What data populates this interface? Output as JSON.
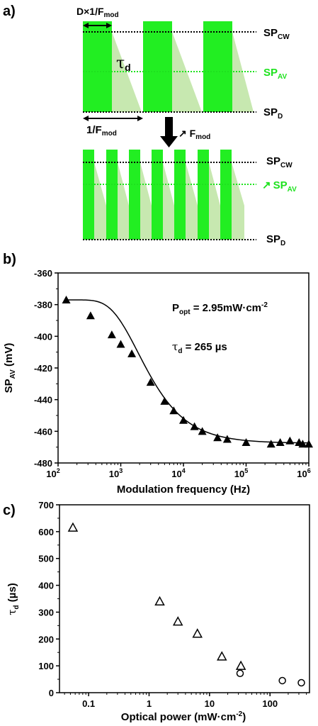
{
  "panels": {
    "a": "a)",
    "b": "b)",
    "c": "c)"
  },
  "diagram": {
    "duty_label": "D×1/F",
    "duty_sub": "mod",
    "tau_label": "τ",
    "tau_sub": "d",
    "period_label": "1/F",
    "period_sub": "mod",
    "arrow_label": "↗ F",
    "arrow_sub": "mod",
    "sp_cw": "SP",
    "sp_cw_sub": "CW",
    "sp_av": "SP",
    "sp_av_sub": "AV",
    "sp_d": "SP",
    "sp_d_sub": "D",
    "sp_av_arrow": "↗",
    "colors": {
      "pulse": "#22ee22",
      "decay": "#c7e8b0",
      "sp_av": "#1ee21e"
    }
  },
  "chart_data": [
    {
      "type": "line",
      "panel": "b)",
      "xlabel": "Modulation frequency (Hz)",
      "ylabel": "SP",
      "ylabel_sub": "AV",
      "ylabel_unit": " (mV)",
      "xscale": "log",
      "xlim": [
        100,
        1000000
      ],
      "ylim": [
        -480,
        -360
      ],
      "xticks": [
        {
          "value": 100,
          "base": "10",
          "exp": "2"
        },
        {
          "value": 1000,
          "base": "10",
          "exp": "3"
        },
        {
          "value": 10000,
          "base": "10",
          "exp": "4"
        },
        {
          "value": 100000,
          "base": "10",
          "exp": "5"
        },
        {
          "value": 1000000,
          "base": "10",
          "exp": "6"
        }
      ],
      "yticks": [
        -360,
        -380,
        -400,
        -420,
        -440,
        -460,
        -480
      ],
      "annotation_popt": "P",
      "annotation_popt_sub": "opt",
      "annotation_popt_value": " = 2.95mW·cm",
      "annotation_popt_exp": "-2",
      "annotation_tau": "τ",
      "annotation_tau_sub": "d",
      "annotation_tau_value": " = 265 µs",
      "points": [
        {
          "x": 135,
          "y": -377
        },
        {
          "x": 330,
          "y": -387
        },
        {
          "x": 720,
          "y": -399
        },
        {
          "x": 1000,
          "y": -405
        },
        {
          "x": 1500,
          "y": -411
        },
        {
          "x": 3000,
          "y": -429
        },
        {
          "x": 5000,
          "y": -441
        },
        {
          "x": 7000,
          "y": -447
        },
        {
          "x": 10000,
          "y": -453
        },
        {
          "x": 15000,
          "y": -457
        },
        {
          "x": 20000,
          "y": -460
        },
        {
          "x": 35000,
          "y": -464
        },
        {
          "x": 50000,
          "y": -465
        },
        {
          "x": 100000,
          "y": -467
        },
        {
          "x": 250000,
          "y": -468
        },
        {
          "x": 350000,
          "y": -467
        },
        {
          "x": 500000,
          "y": -466
        },
        {
          "x": 700000,
          "y": -467
        },
        {
          "x": 800000,
          "y": -468
        },
        {
          "x": 1000000,
          "y": -468
        }
      ],
      "fit": {
        "model": "SP = SPD + (SPCW - SPD) * (1 - exp(-1/(2 f tau)))",
        "tau_us": 265,
        "upper": -377,
        "lower": -467.5
      }
    },
    {
      "type": "scatter",
      "panel": "c)",
      "xlabel": "Optical power (mW·cm",
      "xlabel_exp": "-2",
      "xlabel_close": ")",
      "ylabel": "τ",
      "ylabel_sub": "d",
      "ylabel_unit": " (µs)",
      "xscale": "log",
      "xlim": [
        0.033,
        450
      ],
      "ylim": [
        0,
        700
      ],
      "xticks": [
        "0.1",
        "1",
        "10",
        "100"
      ],
      "yticks": [
        0,
        100,
        200,
        300,
        400,
        500,
        600,
        700
      ],
      "series": [
        {
          "marker": "triangle-open",
          "points": [
            {
              "x": 0.055,
              "y": 615
            },
            {
              "x": 1.5,
              "y": 340
            },
            {
              "x": 3.0,
              "y": 265
            },
            {
              "x": 6.3,
              "y": 220
            },
            {
              "x": 16,
              "y": 135
            },
            {
              "x": 33,
              "y": 100
            }
          ]
        },
        {
          "marker": "circle-open",
          "points": [
            {
              "x": 32,
              "y": 72
            },
            {
              "x": 160,
              "y": 45
            },
            {
              "x": 330,
              "y": 37
            }
          ]
        }
      ]
    }
  ]
}
